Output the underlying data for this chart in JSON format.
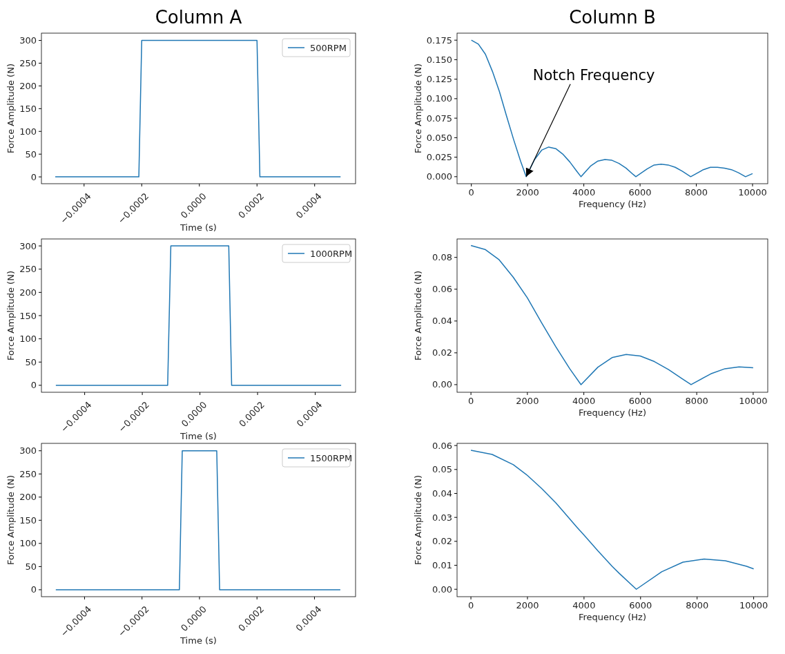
{
  "chart_data": [
    {
      "type": "line",
      "title": "Column A",
      "xlabel": "Time (s)",
      "ylabel": "Force Amplitude (N)",
      "xlim": [
        -0.000548,
        0.000542
      ],
      "ylim": [
        -15,
        316
      ],
      "xticks": [
        {
          "value": -0.0004,
          "label": "−0.0004"
        },
        {
          "value": -0.0002,
          "label": "−0.0002"
        },
        {
          "value": 0,
          "label": "0.0000"
        },
        {
          "value": 0.0002,
          "label": "0.0002"
        },
        {
          "value": 0.0004,
          "label": "0.0004"
        }
      ],
      "yticks": [
        0,
        50,
        100,
        150,
        200,
        250,
        300
      ],
      "legend": "top right",
      "grid": false,
      "series": [
        {
          "name": "500RPM",
          "color": "#1f77b4",
          "x": [
            -0.0005,
            -0.00021,
            -0.0002,
            0.0002,
            0.00021,
            0.00049
          ],
          "values": [
            0,
            0,
            300,
            300,
            0,
            0
          ]
        }
      ]
    },
    {
      "type": "line",
      "title": "Column B",
      "xlabel": "Frequency (Hz)",
      "ylabel": "Force Amplitude (N)",
      "xlim": [
        -508,
        10540
      ],
      "ylim": [
        -0.009,
        0.184
      ],
      "xticks": [
        0,
        2000,
        4000,
        6000,
        8000,
        10000
      ],
      "yticks": [
        {
          "value": 0,
          "label": "0.000"
        },
        {
          "value": 0.025,
          "label": "0.025"
        },
        {
          "value": 0.05,
          "label": "0.050"
        },
        {
          "value": 0.075,
          "label": "0.075"
        },
        {
          "value": 0.1,
          "label": "0.100"
        },
        {
          "value": 0.125,
          "label": "0.125"
        },
        {
          "value": 0.15,
          "label": "0.150"
        },
        {
          "value": 0.175,
          "label": "0.175"
        }
      ],
      "grid": false,
      "annotations": [
        {
          "text": "Notch Frequency",
          "x": 1950,
          "y": 0
        }
      ],
      "series": [
        {
          "color": "#1f77b4",
          "x": [
            0,
            250,
            500,
            750,
            1000,
            1250,
            1500,
            1750,
            1950,
            2250,
            2500,
            2750,
            3000,
            3250,
            3500,
            3750,
            3900,
            4250,
            4500,
            4750,
            5000,
            5250,
            5500,
            5750,
            5850,
            6250,
            6500,
            6750,
            7000,
            7250,
            7500,
            7800,
            8250,
            8500,
            8750,
            9000,
            9250,
            9500,
            9750,
            10000
          ],
          "values": [
            0.175,
            0.17,
            0.157,
            0.135,
            0.109,
            0.078,
            0.048,
            0.02,
            0,
            0.022,
            0.034,
            0.038,
            0.036,
            0.029,
            0.019,
            0.007,
            0,
            0.014,
            0.02,
            0.022,
            0.021,
            0.017,
            0.011,
            0.003,
            0,
            0.01,
            0.015,
            0.016,
            0.015,
            0.012,
            0.007,
            0,
            0.009,
            0.012,
            0.012,
            0.011,
            0.009,
            0.005,
            0,
            0.004
          ]
        }
      ]
    },
    {
      "type": "line",
      "xlabel": "Time (s)",
      "ylabel": "Force Amplitude (N)",
      "xlim": [
        -0.00055,
        0.00054
      ],
      "ylim": [
        -15,
        315
      ],
      "xticks": [
        {
          "value": -0.0004,
          "label": "−0.0004"
        },
        {
          "value": -0.0002,
          "label": "−0.0002"
        },
        {
          "value": 0,
          "label": "0.0000"
        },
        {
          "value": 0.0002,
          "label": "0.0002"
        },
        {
          "value": 0.0004,
          "label": "0.0004"
        }
      ],
      "yticks": [
        0,
        50,
        100,
        150,
        200,
        250,
        300
      ],
      "legend": "top right",
      "grid": false,
      "series": [
        {
          "name": "1000RPM",
          "color": "#1f77b4",
          "x": [
            -0.0005,
            -0.000112,
            -0.000101,
            0.0001,
            0.00011,
            0.00049
          ],
          "values": [
            0,
            0,
            300,
            300,
            0,
            0
          ]
        }
      ]
    },
    {
      "type": "line",
      "xlabel": "Frequency (Hz)",
      "ylabel": "Force Amplitude (N)",
      "xlim": [
        -492,
        10516
      ],
      "ylim": [
        -0.0048,
        0.0916
      ],
      "xticks": [
        0,
        2000,
        4000,
        6000,
        8000,
        10000
      ],
      "yticks": [
        {
          "value": 0,
          "label": "0.00"
        },
        {
          "value": 0.02,
          "label": "0.02"
        },
        {
          "value": 0.04,
          "label": "0.04"
        },
        {
          "value": 0.06,
          "label": "0.06"
        },
        {
          "value": 0.08,
          "label": "0.08"
        }
      ],
      "grid": false,
      "series": [
        {
          "color": "#1f77b4",
          "x": [
            0,
            500,
            1000,
            1500,
            2000,
            2500,
            3000,
            3500,
            3900,
            4500,
            5000,
            5500,
            6000,
            6500,
            7000,
            7500,
            7800,
            8500,
            9000,
            9500,
            10000
          ],
          "values": [
            0.0875,
            0.085,
            0.0785,
            0.0675,
            0.0545,
            0.039,
            0.024,
            0.01,
            0,
            0.011,
            0.017,
            0.019,
            0.018,
            0.0145,
            0.0095,
            0.0035,
            0,
            0.0068,
            0.01,
            0.0112,
            0.0106
          ]
        }
      ]
    },
    {
      "type": "line",
      "xlabel": "Time (s)",
      "ylabel": "Force Amplitude (N)",
      "xlim": [
        -0.00055,
        0.000543
      ],
      "ylim": [
        -15,
        316
      ],
      "xticks": [
        {
          "value": -0.0004,
          "label": "−0.0004"
        },
        {
          "value": -0.0002,
          "label": "−0.0002"
        },
        {
          "value": 0,
          "label": "0.0000"
        },
        {
          "value": 0.0002,
          "label": "0.0002"
        },
        {
          "value": 0.0004,
          "label": "0.0004"
        }
      ],
      "yticks": [
        0,
        50,
        100,
        150,
        200,
        250,
        300
      ],
      "legend": "top right",
      "grid": false,
      "series": [
        {
          "name": "1500RPM",
          "color": "#1f77b4",
          "x": [
            -0.0005,
            -7e-05,
            -6e-05,
            6e-05,
            7e-05,
            0.00049
          ],
          "values": [
            0,
            0,
            300,
            300,
            0,
            0
          ]
        }
      ]
    },
    {
      "type": "line",
      "xlabel": "Frequency (Hz)",
      "ylabel": "Force Amplitude (N)",
      "xlim": [
        -490,
        10498
      ],
      "ylim": [
        -0.0031,
        0.0609
      ],
      "xticks": [
        0,
        2000,
        4000,
        6000,
        8000,
        10000
      ],
      "yticks": [
        {
          "value": 0,
          "label": "0.00"
        },
        {
          "value": 0.01,
          "label": "0.01"
        },
        {
          "value": 0.02,
          "label": "0.02"
        },
        {
          "value": 0.03,
          "label": "0.03"
        },
        {
          "value": 0.04,
          "label": "0.04"
        },
        {
          "value": 0.05,
          "label": "0.05"
        },
        {
          "value": 0.06,
          "label": "0.06"
        }
      ],
      "grid": false,
      "series": [
        {
          "color": "#1f77b4",
          "x": [
            0,
            750,
            1500,
            2000,
            2500,
            3000,
            3250,
            3750,
            4000,
            4500,
            5000,
            5250,
            5850,
            6750,
            7500,
            8250,
            9000,
            9750,
            10000
          ],
          "values": [
            0.058,
            0.0563,
            0.052,
            0.0475,
            0.0421,
            0.0361,
            0.0327,
            0.0259,
            0.0226,
            0.0159,
            0.0095,
            0.0066,
            0,
            0.0073,
            0.0113,
            0.0126,
            0.0119,
            0.0096,
            0.0085
          ]
        }
      ]
    }
  ]
}
